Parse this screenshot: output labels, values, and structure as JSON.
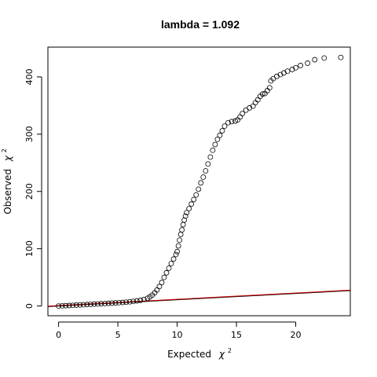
{
  "chart_data": {
    "type": "scatter",
    "title": "lambda = 1.092",
    "xlabel": "Expected",
    "ylabel": "Observed",
    "xlabel_symbol": "χ",
    "ylabel_symbol": "χ",
    "label_superscript": "2",
    "xlim": [
      -0.9,
      24.6
    ],
    "ylim": [
      -17,
      452
    ],
    "x_ticks": [
      0,
      5,
      10,
      15,
      20
    ],
    "y_ticks": [
      0,
      100,
      200,
      300,
      400
    ],
    "reference_line": {
      "slope": 1.092,
      "intercept": 0,
      "colors": [
        "#000000",
        "#cc0000"
      ]
    },
    "points": [
      [
        0.0,
        0.0
      ],
      [
        0.3,
        0.3
      ],
      [
        0.6,
        0.6
      ],
      [
        0.9,
        0.9
      ],
      [
        1.2,
        1.2
      ],
      [
        1.5,
        1.6
      ],
      [
        1.8,
        1.9
      ],
      [
        2.1,
        2.2
      ],
      [
        2.4,
        2.6
      ],
      [
        2.7,
        2.9
      ],
      [
        3.0,
        3.3
      ],
      [
        3.3,
        3.6
      ],
      [
        3.6,
        4.0
      ],
      [
        3.9,
        4.3
      ],
      [
        4.2,
        4.7
      ],
      [
        4.5,
        5.0
      ],
      [
        4.8,
        5.4
      ],
      [
        5.1,
        5.8
      ],
      [
        5.4,
        6.2
      ],
      [
        5.7,
        6.7
      ],
      [
        6.0,
        7.3
      ],
      [
        6.3,
        8.0
      ],
      [
        6.6,
        9.0
      ],
      [
        6.9,
        10.0
      ],
      [
        7.2,
        11.5
      ],
      [
        7.5,
        13.5
      ],
      [
        7.7,
        16.0
      ],
      [
        7.9,
        19.0
      ],
      [
        8.1,
        23.0
      ],
      [
        8.3,
        28.0
      ],
      [
        8.5,
        34.0
      ],
      [
        8.7,
        41.0
      ],
      [
        8.9,
        50.0
      ],
      [
        9.1,
        58.0
      ],
      [
        9.3,
        66.0
      ],
      [
        9.5,
        74.0
      ],
      [
        9.7,
        82.0
      ],
      [
        9.9,
        90.0
      ],
      [
        10.0,
        95.0
      ],
      [
        10.1,
        105.0
      ],
      [
        10.2,
        115.0
      ],
      [
        10.3,
        125.0
      ],
      [
        10.4,
        133.0
      ],
      [
        10.5,
        142.0
      ],
      [
        10.6,
        150.0
      ],
      [
        10.7,
        157.0
      ],
      [
        10.8,
        163.0
      ],
      [
        11.0,
        170.0
      ],
      [
        11.2,
        178.0
      ],
      [
        11.4,
        186.0
      ],
      [
        11.6,
        194.0
      ],
      [
        11.8,
        204.0
      ],
      [
        12.0,
        215.0
      ],
      [
        12.2,
        225.0
      ],
      [
        12.4,
        236.0
      ],
      [
        12.6,
        248.0
      ],
      [
        12.8,
        260.0
      ],
      [
        13.0,
        272.0
      ],
      [
        13.2,
        282.0
      ],
      [
        13.4,
        291.0
      ],
      [
        13.6,
        298.0
      ],
      [
        13.8,
        306.0
      ],
      [
        14.0,
        314.0
      ],
      [
        14.3,
        320.0
      ],
      [
        14.6,
        322.0
      ],
      [
        14.9,
        323.0
      ],
      [
        15.1,
        325.0
      ],
      [
        15.3,
        330.0
      ],
      [
        15.5,
        336.0
      ],
      [
        15.8,
        342.0
      ],
      [
        16.1,
        346.0
      ],
      [
        16.4,
        349.0
      ],
      [
        16.6,
        355.0
      ],
      [
        16.8,
        360.0
      ],
      [
        17.0,
        366.0
      ],
      [
        17.2,
        370.0
      ],
      [
        17.4,
        371.0
      ],
      [
        17.6,
        376.0
      ],
      [
        17.8,
        381.0
      ],
      [
        17.9,
        393.0
      ],
      [
        18.1,
        397.0
      ],
      [
        18.4,
        401.0
      ],
      [
        18.7,
        404.0
      ],
      [
        19.0,
        407.0
      ],
      [
        19.3,
        410.0
      ],
      [
        19.7,
        413.0
      ],
      [
        20.0,
        416.0
      ],
      [
        20.4,
        420.0
      ],
      [
        21.0,
        424.0
      ],
      [
        21.6,
        430.0
      ],
      [
        22.4,
        433.0
      ],
      [
        23.8,
        434.0
      ]
    ]
  }
}
